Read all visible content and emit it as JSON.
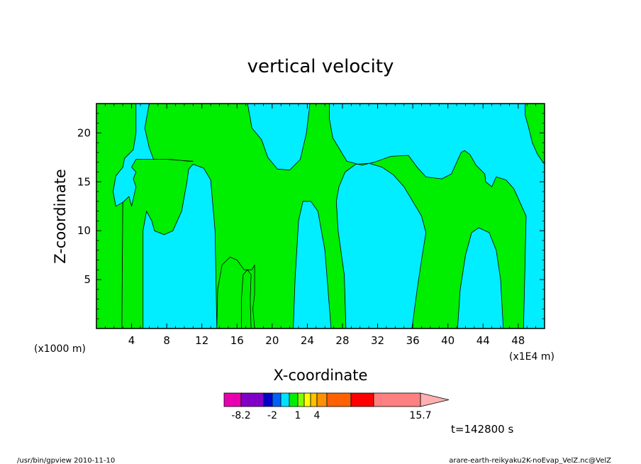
{
  "chart_data": {
    "type": "heatmap",
    "title": "vertical velocity",
    "xlabel": "X-coordinate",
    "ylabel": "Z-coordinate",
    "xlim": [
      0,
      51
    ],
    "ylim": [
      0,
      23
    ],
    "x_ticks": [
      4,
      8,
      12,
      16,
      20,
      24,
      28,
      32,
      36,
      40,
      44,
      48
    ],
    "y_ticks": [
      5,
      10,
      15,
      20
    ],
    "y_unit": "(x1000 m)",
    "x_unit": "(x1E4 m)",
    "colors": {
      "updraft": "#00ee00",
      "downdraft": "#00eeff",
      "contour": "#000000"
    },
    "updraft_regions": [
      {
        "name": "updraft-region-1",
        "points": [
          [
            0,
            23
          ],
          [
            4.5,
            23
          ],
          [
            4.5,
            20
          ],
          [
            4.2,
            18.3
          ],
          [
            3.2,
            17.4
          ],
          [
            3,
            16.5
          ],
          [
            2.2,
            15.6
          ],
          [
            1.9,
            14
          ],
          [
            2.2,
            12.5
          ],
          [
            3,
            12.9
          ],
          [
            2.9,
            0
          ],
          [
            0,
            0
          ]
        ]
      },
      {
        "name": "updraft-region-2",
        "points": [
          [
            6,
            23
          ],
          [
            17.2,
            23
          ],
          [
            17.7,
            20.5
          ],
          [
            18.8,
            19.3
          ],
          [
            19.5,
            17.5
          ],
          [
            20.6,
            16.3
          ],
          [
            22,
            16.2
          ],
          [
            23.2,
            17.3
          ],
          [
            23.9,
            20
          ],
          [
            24.3,
            23
          ],
          [
            26.5,
            23
          ],
          [
            26.5,
            21.5
          ],
          [
            26.9,
            19.5
          ],
          [
            28.5,
            17.1
          ],
          [
            30.2,
            16.7
          ],
          [
            31.6,
            17
          ],
          [
            33.5,
            17.6
          ],
          [
            35.5,
            17.7
          ],
          [
            36.5,
            16.5
          ],
          [
            37.5,
            15.5
          ],
          [
            39.3,
            15.3
          ],
          [
            40.4,
            15.8
          ],
          [
            41.5,
            18
          ],
          [
            41.9,
            18.2
          ],
          [
            42.5,
            17.8
          ],
          [
            43.2,
            16.7
          ],
          [
            44.2,
            15.8
          ],
          [
            44.3,
            15
          ],
          [
            45,
            14.5
          ],
          [
            45.5,
            15.5
          ],
          [
            46.6,
            15.2
          ],
          [
            47.5,
            14.3
          ],
          [
            47.9,
            13.5
          ],
          [
            48.5,
            12.3
          ],
          [
            48.9,
            11.5
          ],
          [
            48.6,
            0
          ],
          [
            46.3,
            0
          ],
          [
            46,
            5
          ],
          [
            45.5,
            8
          ],
          [
            44.7,
            9.8
          ],
          [
            43.5,
            10.3
          ],
          [
            42.7,
            9.8
          ],
          [
            42,
            7.5
          ],
          [
            41.4,
            4
          ],
          [
            41.1,
            0
          ],
          [
            35.9,
            0
          ],
          [
            36.5,
            4
          ],
          [
            37,
            7
          ],
          [
            37.5,
            9.8
          ],
          [
            37,
            11.5
          ],
          [
            36,
            13
          ],
          [
            35,
            14.5
          ],
          [
            33.8,
            15.7
          ],
          [
            32.5,
            16.5
          ],
          [
            31,
            16.9
          ],
          [
            29.5,
            16.8
          ],
          [
            28.3,
            16
          ],
          [
            27.6,
            14.5
          ],
          [
            27.3,
            13
          ],
          [
            27.5,
            10
          ],
          [
            28.2,
            5.5
          ],
          [
            28.4,
            0
          ],
          [
            26.7,
            0
          ],
          [
            26,
            8
          ],
          [
            25.2,
            12
          ],
          [
            24.4,
            13
          ],
          [
            23.5,
            13
          ],
          [
            23,
            11
          ],
          [
            22.6,
            5
          ],
          [
            22.4,
            0
          ],
          [
            17.6,
            0
          ],
          [
            17.5,
            3
          ],
          [
            17.6,
            5.5
          ],
          [
            17.2,
            6
          ],
          [
            16.7,
            5.5
          ],
          [
            16.5,
            3
          ],
          [
            16.5,
            0
          ],
          [
            13.7,
            0
          ],
          [
            13.8,
            4
          ],
          [
            14.3,
            6.5
          ],
          [
            15.2,
            7.3
          ],
          [
            16,
            7
          ],
          [
            16.8,
            6
          ],
          [
            17.7,
            6
          ],
          [
            18,
            6.5
          ],
          [
            18,
            5
          ],
          [
            18,
            3.5
          ],
          [
            17.8,
            2
          ],
          [
            18,
            0
          ],
          [
            13.7,
            0
          ],
          [
            13.5,
            10
          ],
          [
            13,
            15.2
          ],
          [
            12.2,
            16.4
          ],
          [
            11,
            16.8
          ],
          [
            10.5,
            16.3
          ],
          [
            10.3,
            15
          ],
          [
            9.7,
            12
          ],
          [
            8.7,
            10
          ],
          [
            7.7,
            9.6
          ],
          [
            6.6,
            10
          ],
          [
            6.3,
            11
          ],
          [
            5.7,
            12
          ],
          [
            5.3,
            10
          ],
          [
            5.3,
            0
          ],
          [
            2.9,
            0
          ],
          [
            3,
            12.9
          ],
          [
            3.7,
            13.5
          ],
          [
            4,
            12.5
          ],
          [
            4.5,
            14.5
          ],
          [
            4.2,
            15.3
          ],
          [
            4.5,
            16
          ],
          [
            4,
            16.5
          ],
          [
            4.5,
            17.3
          ],
          [
            6.5,
            17.3
          ],
          [
            8.5,
            17.3
          ],
          [
            10.5,
            17.1
          ],
          [
            11,
            17.1
          ],
          [
            8,
            17.3
          ],
          [
            6.5,
            17.3
          ],
          [
            6,
            18.5
          ],
          [
            5.5,
            20.5
          ],
          [
            6,
            23
          ]
        ]
      },
      {
        "name": "updraft-region-3",
        "points": [
          [
            48.8,
            23
          ],
          [
            51,
            23
          ],
          [
            51,
            16.8
          ],
          [
            50.2,
            17.8
          ],
          [
            49.6,
            19
          ],
          [
            49.2,
            20.5
          ],
          [
            48.8,
            21.8
          ],
          [
            48.8,
            23
          ]
        ]
      }
    ],
    "colorbar": {
      "levels": [
        "-8.2",
        "-2",
        "1",
        "4",
        "15.7"
      ],
      "colors": [
        "#e800b0",
        "#8000c8",
        "#0000cc",
        "#0060ff",
        "#00e0ff",
        "#00ee00",
        "#80ff00",
        "#ffff00",
        "#ffc000",
        "#ff9000",
        "#ff6000",
        "#ff0000",
        "#ff8080",
        "#ffb0b0"
      ]
    },
    "time_label": "t=142800 s",
    "footer_left": "/usr/bin/gpview   2010-11-10",
    "footer_right": "arare-earth-reikyaku2K-noEvap_VelZ.nc@VelZ"
  }
}
